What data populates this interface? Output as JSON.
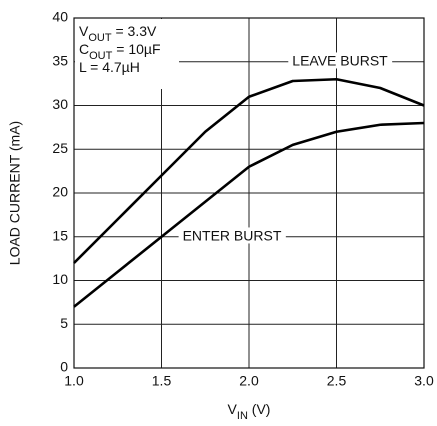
{
  "chart_data": {
    "type": "line",
    "x": [
      1.0,
      1.25,
      1.5,
      1.75,
      2.0,
      2.25,
      2.5,
      2.75,
      3.0
    ],
    "series": [
      {
        "name": "LEAVE BURST",
        "color": "#000000",
        "values": [
          12,
          17,
          22,
          27,
          31,
          32.8,
          33,
          32,
          30
        ]
      },
      {
        "name": "ENTER BURST",
        "color": "#000000",
        "values": [
          7,
          11,
          15,
          19,
          23,
          25.5,
          27,
          27.8,
          28
        ]
      }
    ],
    "xlabel": [
      "V",
      "IN",
      " (V)"
    ],
    "ylabel": "LOAD CURRENT (mA)",
    "annotations": [
      [
        "V",
        "OUT",
        " = 3.3V"
      ],
      [
        "C",
        "OUT",
        " = 10µF"
      ],
      [
        "L = 4.7µH"
      ]
    ],
    "xlim": [
      1.0,
      3.0
    ],
    "xticks": [
      {
        "value": 1.0,
        "label": "1.0"
      },
      {
        "value": 1.5,
        "label": "1.5"
      },
      {
        "value": 2.0,
        "label": "2.0"
      },
      {
        "value": 2.5,
        "label": "2.5"
      },
      {
        "value": 3.0,
        "label": "3.0"
      }
    ],
    "ylim": [
      0,
      40
    ],
    "yticks": [
      0,
      5,
      10,
      15,
      20,
      25,
      30,
      35,
      40
    ],
    "grid": true
  }
}
